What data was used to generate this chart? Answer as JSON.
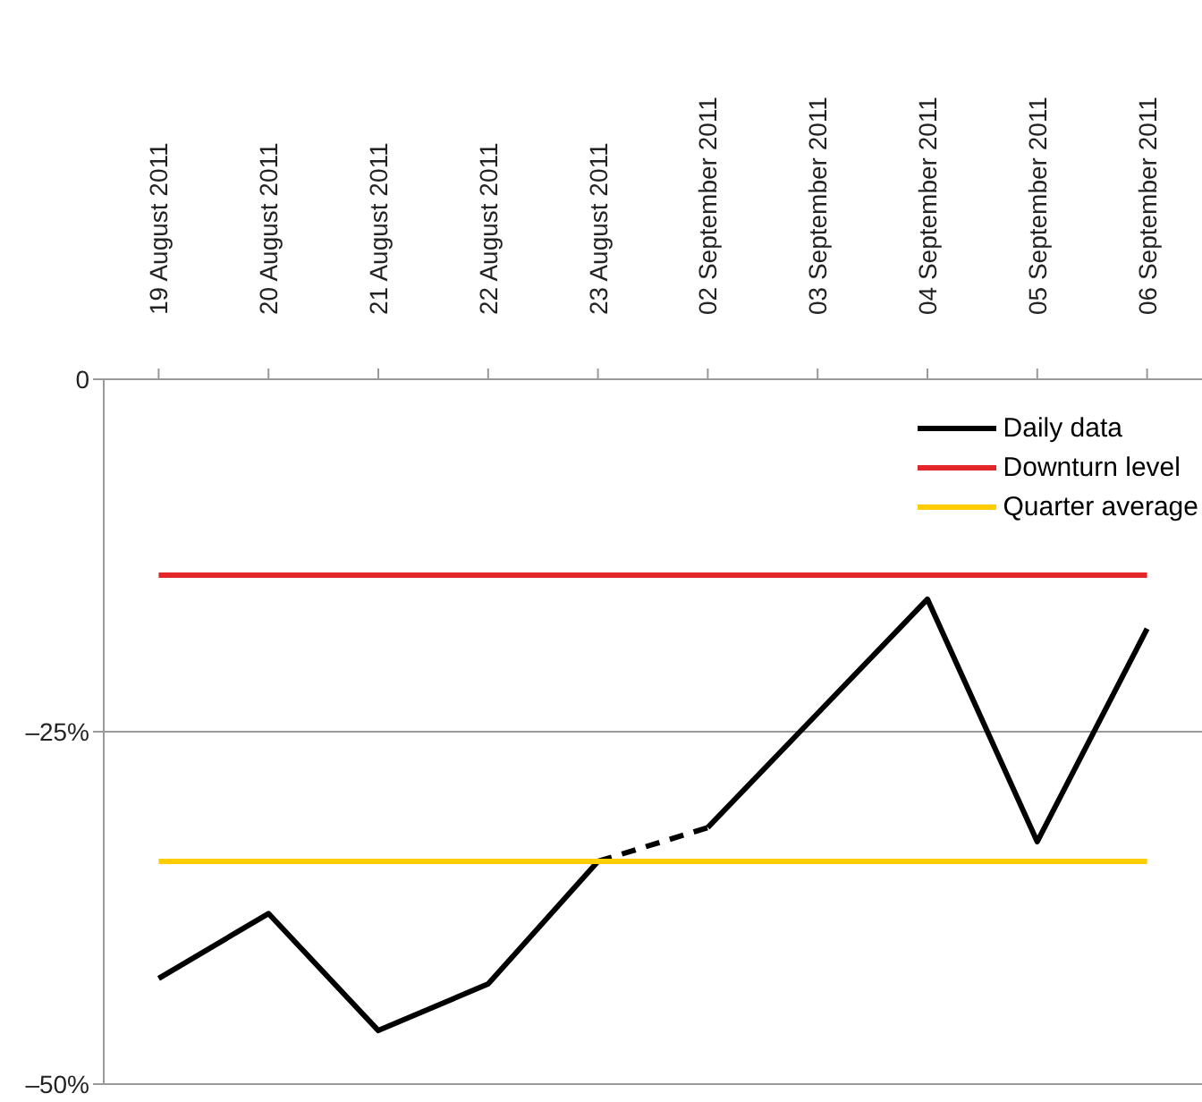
{
  "chart_data": {
    "type": "line",
    "categories": [
      "19 August 2011",
      "20 August 2011",
      "21 August 2011",
      "22 August 2011",
      "23 August 2011",
      "02 September 2011",
      "03 September 2011",
      "04 September 2011",
      "05 September 2011",
      "06 September 2011"
    ],
    "series": [
      {
        "name": "Daily data",
        "color": "#000000",
        "values": [
          -42.5,
          -37.9,
          -46.2,
          -42.9,
          -34.2,
          null,
          null,
          null,
          null,
          null
        ]
      },
      {
        "color": "#000000",
        "line_style": "dashed",
        "values": [
          null,
          null,
          null,
          null,
          -34.2,
          -31.8,
          null,
          null,
          null,
          null
        ]
      },
      {
        "color": "#000000",
        "values": [
          null,
          null,
          null,
          null,
          null,
          -31.8,
          -23.7,
          -15.6,
          -32.8,
          -17.7
        ]
      },
      {
        "name": "Downturn level",
        "color": "#e3262a",
        "values": [
          -13.9,
          -13.9,
          -13.9,
          -13.9,
          -13.9,
          -13.9,
          -13.9,
          -13.9,
          -13.9,
          -13.9
        ]
      },
      {
        "name": "Quarter average",
        "color": "#ffcc00",
        "values": [
          -34.2,
          -34.2,
          -34.2,
          -34.2,
          -34.2,
          -34.2,
          -34.2,
          -34.2,
          -34.2,
          -34.2
        ]
      }
    ],
    "ylim": [
      -50,
      0
    ],
    "yticks": [
      {
        "value": 0,
        "label": "0"
      },
      {
        "value": -25,
        "label": "–25%"
      },
      {
        "value": -50,
        "label": "–50%"
      }
    ],
    "grid": "y",
    "legend": "top right",
    "line_style": "solid",
    "marker": "none"
  }
}
